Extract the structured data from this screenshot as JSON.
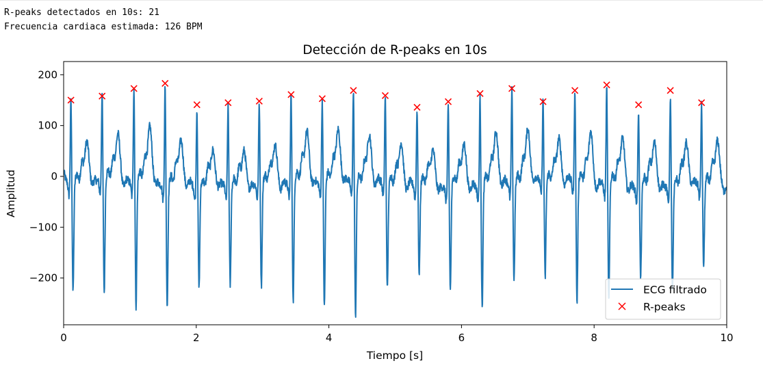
{
  "console": {
    "line1": "R-peaks detectados en 10s: 21",
    "line2": "Frecuencia cardiaca estimada: 126 BPM"
  },
  "chart_data": {
    "type": "line",
    "title": "Detección de R-peaks en 10s",
    "xlabel": "Tiempo [s]",
    "ylabel": "Amplitud",
    "xlim": [
      0,
      10
    ],
    "ylim": [
      -292,
      226
    ],
    "xticks": [
      0,
      2,
      4,
      6,
      8,
      10
    ],
    "yticks": [
      -200,
      -100,
      0,
      100,
      200
    ],
    "ytick_labels": [
      "−200",
      "−100",
      "0",
      "100",
      "200"
    ],
    "grid": false,
    "legend_position": "lower right",
    "colors": {
      "ecg": "#1f77b4",
      "peaks": "#ff0000"
    },
    "series": [
      {
        "name": "ECG filtrado",
        "kind": "line",
        "beats": [
          {
            "r_time": 0.11,
            "r_amp": 150,
            "s_amp": -222,
            "t_amp": 75
          },
          {
            "r_time": 0.58,
            "r_amp": 158,
            "s_amp": -228,
            "t_amp": 85
          },
          {
            "r_time": 1.06,
            "r_amp": 173,
            "s_amp": -252,
            "t_amp": 98
          },
          {
            "r_time": 1.53,
            "r_amp": 183,
            "s_amp": -243,
            "t_amp": 75
          },
          {
            "r_time": 2.01,
            "r_amp": 141,
            "s_amp": -203,
            "t_amp": 63
          },
          {
            "r_time": 2.48,
            "r_amp": 145,
            "s_amp": -200,
            "t_amp": 65
          },
          {
            "r_time": 2.95,
            "r_amp": 148,
            "s_amp": -207,
            "t_amp": 70
          },
          {
            "r_time": 3.43,
            "r_amp": 161,
            "s_amp": -241,
            "t_amp": 88
          },
          {
            "r_time": 3.9,
            "r_amp": 153,
            "s_amp": -251,
            "t_amp": 88
          },
          {
            "r_time": 4.37,
            "r_amp": 169,
            "s_amp": -266,
            "t_amp": 85
          },
          {
            "r_time": 4.85,
            "r_amp": 159,
            "s_amp": -214,
            "t_amp": 78
          },
          {
            "r_time": 5.33,
            "r_amp": 136,
            "s_amp": -185,
            "t_amp": 67
          },
          {
            "r_time": 5.8,
            "r_amp": 147,
            "s_amp": -210,
            "t_amp": 72
          },
          {
            "r_time": 6.28,
            "r_amp": 163,
            "s_amp": -246,
            "t_amp": 88
          },
          {
            "r_time": 6.76,
            "r_amp": 173,
            "s_amp": -195,
            "t_amp": 92
          },
          {
            "r_time": 7.23,
            "r_amp": 147,
            "s_amp": -195,
            "t_amp": 77
          },
          {
            "r_time": 7.71,
            "r_amp": 169,
            "s_amp": -246,
            "t_amp": 96
          },
          {
            "r_time": 8.19,
            "r_amp": 180,
            "s_amp": -239,
            "t_amp": 85
          },
          {
            "r_time": 8.67,
            "r_amp": 141,
            "s_amp": -185,
            "t_amp": 75
          },
          {
            "r_time": 9.15,
            "r_amp": 169,
            "s_amp": -206,
            "t_amp": 72
          },
          {
            "r_time": 9.62,
            "r_amp": 145,
            "s_amp": -165,
            "t_amp": 75
          }
        ]
      },
      {
        "name": "R-peaks",
        "kind": "scatter",
        "marker": "x",
        "x": [
          0.11,
          0.58,
          1.06,
          1.53,
          2.01,
          2.48,
          2.95,
          3.43,
          3.9,
          4.37,
          4.85,
          5.33,
          5.8,
          6.28,
          6.76,
          7.23,
          7.71,
          8.19,
          8.67,
          9.15,
          9.62
        ],
        "y": [
          150,
          158,
          173,
          183,
          141,
          145,
          148,
          161,
          153,
          169,
          159,
          136,
          147,
          163,
          173,
          147,
          169,
          180,
          141,
          169,
          145
        ]
      }
    ]
  }
}
